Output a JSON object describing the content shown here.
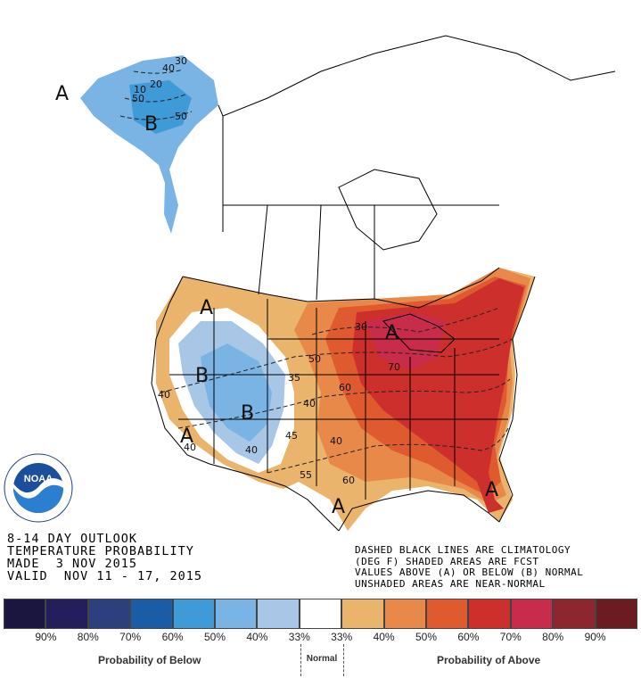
{
  "title_lines": [
    "8-14 DAY OUTLOOK",
    "TEMPERATURE PROBABILITY",
    "MADE  3 NOV 2015",
    "VALID  NOV 11 - 17, 2015"
  ],
  "notes": [
    "DASHED BLACK LINES ARE CLIMATOLOGY",
    "(DEG F) SHADED AREAS ARE FCST",
    "VALUES ABOVE (A) OR BELOW (B) NORMAL",
    "UNSHADED AREAS ARE NEAR-NORMAL"
  ],
  "logo": {
    "text": "NOAA",
    "ring": "NATIONAL OCEANIC AND ATMOSPHERIC ADMINISTRATION",
    "ring2": "U.S. DEPARTMENT OF COMMERCE"
  },
  "map_labels": {
    "a_alaska": "A",
    "b_alaska": "B",
    "a_northwest": "A",
    "b_west": "B",
    "b_rockies": "B",
    "a_socal": "A",
    "a_greatlakes": "A",
    "a_texas": "A",
    "a_florida": "A",
    "iso_ak_40": "40",
    "iso_ak_50a": "50",
    "iso_ak_50b": "50",
    "iso_ak_10": "10",
    "iso_ak_30": "30",
    "iso_ak_20": "20",
    "iso_40": "40",
    "iso_30": "30",
    "iso_35": "35",
    "iso_45": "45",
    "iso_40b": "40",
    "iso_50": "50",
    "iso_60": "60",
    "iso_60b": "60",
    "iso_70": "70",
    "iso_55": "55",
    "iso_40c": "40",
    "iso_40d": "40",
    "iso_40e": "40"
  },
  "colorbar": {
    "colors": [
      "#1b1640",
      "#241f5c",
      "#2e3f7e",
      "#1a5ca6",
      "#3f9ad8",
      "#7ab4e4",
      "#a8c6e6",
      "#ffffff",
      "#eab46c",
      "#e8894a",
      "#e05a30",
      "#cd2f2c",
      "#c92c4b",
      "#8e2630",
      "#6a1c20"
    ],
    "ticks": [
      "90%",
      "80%",
      "70%",
      "60%",
      "50%",
      "40%",
      "33%",
      "33%",
      "40%",
      "50%",
      "60%",
      "70%",
      "80%",
      "90%"
    ]
  },
  "captions": {
    "below": "Probability of Below",
    "normal": "Normal",
    "above": "Probability of Above"
  }
}
